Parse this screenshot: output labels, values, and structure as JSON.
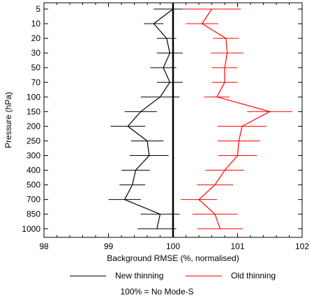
{
  "chart_data": {
    "type": "line",
    "orientation": "horizontal-profile",
    "xlabel": "Background RMSE (%, normalised)",
    "ylabel": "Pressure (hPa)",
    "xlim": [
      98,
      102
    ],
    "x_ticks": [
      "98",
      "99",
      "100",
      "101",
      "102"
    ],
    "y_levels": [
      "5",
      "10",
      "20",
      "30",
      "50",
      "70",
      "100",
      "150",
      "200",
      "250",
      "300",
      "400",
      "500",
      "700",
      "850",
      "1000"
    ],
    "reference_line_x": 100,
    "series": [
      {
        "name": "New thinning",
        "color": "#000000",
        "values": [
          100.0,
          99.7,
          99.9,
          99.95,
          99.85,
          99.95,
          99.8,
          99.5,
          99.3,
          99.6,
          99.63,
          99.42,
          99.37,
          99.25,
          99.8,
          99.75
        ],
        "error_halfwidth": [
          0.3,
          0.15,
          0.15,
          0.2,
          0.2,
          0.2,
          0.3,
          0.25,
          0.27,
          0.25,
          0.3,
          0.22,
          0.2,
          0.25,
          0.3,
          0.3
        ]
      },
      {
        "name": "Old thinning",
        "color": "#ff0000",
        "values": [
          100.6,
          100.45,
          100.82,
          100.84,
          100.8,
          100.8,
          100.68,
          101.5,
          101.07,
          101.02,
          101.0,
          100.8,
          100.65,
          100.4,
          100.65,
          100.73
        ]
      }
    ],
    "old_error_halfwidth": [
      0.45,
      0.25,
      0.2,
      0.25,
      0.2,
      0.2,
      0.2,
      0.35,
      0.38,
      0.33,
      0.3,
      0.3,
      0.28,
      0.28,
      0.35,
      0.35
    ],
    "legend_placement": "bottom",
    "grid": false
  },
  "legend": {
    "new_label": "New thinning",
    "old_label": "Old thinning"
  },
  "footnote": "100% = No Mode-S"
}
